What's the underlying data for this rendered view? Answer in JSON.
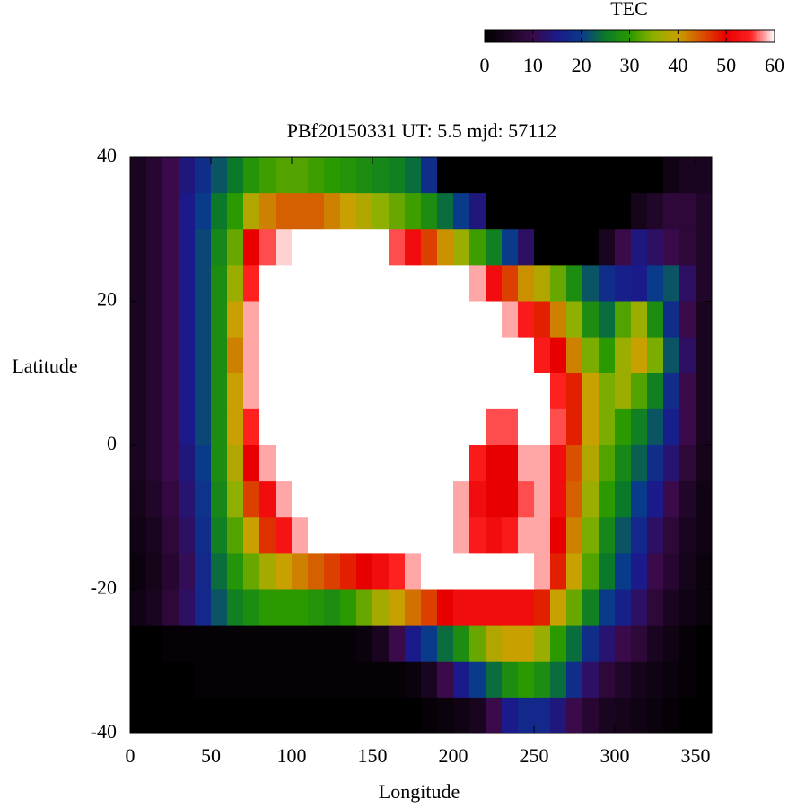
{
  "chart_data": {
    "type": "heatmap",
    "title": "PBf20150331  UT: 5.5  mjd: 57112",
    "x_label": "Longitude",
    "y_label": "Latitude",
    "xlim": [
      0,
      360
    ],
    "ylim": [
      -40,
      40
    ],
    "xticks": [
      0,
      50,
      100,
      150,
      200,
      250,
      300,
      350
    ],
    "yticks": [
      -40,
      -20,
      0,
      20,
      40
    ],
    "colorbar_title": "TEC",
    "zlim": [
      0,
      60
    ],
    "colorbar_ticks": [
      0,
      10,
      20,
      30,
      40,
      50,
      60
    ],
    "colormap": [
      "#000000",
      "#1a0520",
      "#3a0a4a",
      "#1a1a8a",
      "#0a3a8a",
      "#0a7a2a",
      "#2a9a00",
      "#8fb000",
      "#c8a000",
      "#d85000",
      "#e80000",
      "#ff2020",
      "#ffffff"
    ],
    "z": [
      [
        5,
        7,
        10,
        14,
        18,
        22,
        25,
        29,
        31,
        32,
        32,
        31,
        30,
        29,
        28,
        27,
        26,
        24,
        18,
        0,
        0,
        0,
        0,
        0,
        0,
        0,
        0,
        0,
        0,
        0,
        0,
        0,
        0,
        3,
        5,
        5
      ],
      [
        5,
        7,
        10,
        15,
        20,
        25,
        30,
        38,
        42,
        44,
        44,
        44,
        42,
        40,
        38,
        35,
        33,
        31,
        28,
        24,
        20,
        14,
        0,
        0,
        0,
        0,
        0,
        0,
        0,
        0,
        0,
        4,
        6,
        8,
        8,
        6
      ],
      [
        5,
        7,
        10,
        15,
        21,
        27,
        33,
        50,
        56,
        59,
        60,
        60,
        60,
        60,
        60,
        60,
        56,
        52,
        46,
        41,
        36,
        31,
        26,
        20,
        12,
        0,
        0,
        0,
        0,
        5,
        10,
        14,
        12,
        10,
        8,
        6
      ],
      [
        5,
        7,
        10,
        15,
        21,
        28,
        36,
        55,
        60,
        60,
        60,
        60,
        60,
        60,
        60,
        60,
        60,
        60,
        60,
        60,
        60,
        58,
        52,
        46,
        41,
        38,
        33,
        28,
        22,
        18,
        16,
        15,
        20,
        22,
        12,
        6
      ],
      [
        5,
        7,
        10,
        15,
        21,
        28,
        40,
        58,
        60,
        60,
        60,
        60,
        60,
        60,
        60,
        60,
        60,
        60,
        60,
        60,
        60,
        60,
        60,
        58,
        54,
        48,
        42,
        35,
        28,
        24,
        32,
        36,
        28,
        18,
        10,
        5
      ],
      [
        5,
        7,
        10,
        15,
        21,
        28,
        42,
        58,
        60,
        60,
        60,
        60,
        60,
        60,
        60,
        60,
        60,
        60,
        60,
        60,
        60,
        60,
        60,
        60,
        60,
        54,
        50,
        42,
        34,
        30,
        36,
        40,
        34,
        22,
        12,
        5
      ],
      [
        5,
        7,
        10,
        15,
        21,
        28,
        40,
        58,
        60,
        60,
        60,
        60,
        60,
        60,
        60,
        60,
        60,
        60,
        60,
        60,
        60,
        60,
        60,
        60,
        60,
        60,
        55,
        48,
        40,
        34,
        36,
        32,
        26,
        18,
        10,
        5
      ],
      [
        5,
        7,
        10,
        15,
        21,
        28,
        40,
        55,
        60,
        60,
        60,
        60,
        60,
        60,
        60,
        60,
        60,
        60,
        60,
        60,
        60,
        60,
        56,
        56,
        60,
        60,
        56,
        48,
        40,
        34,
        30,
        26,
        22,
        16,
        10,
        5
      ],
      [
        5,
        7,
        10,
        14,
        20,
        28,
        38,
        50,
        58,
        60,
        60,
        60,
        60,
        60,
        60,
        60,
        60,
        60,
        60,
        60,
        60,
        54,
        50,
        50,
        58,
        58,
        52,
        45,
        38,
        32,
        27,
        23,
        18,
        13,
        8,
        4
      ],
      [
        4,
        6,
        9,
        13,
        19,
        27,
        35,
        46,
        52,
        58,
        60,
        60,
        60,
        60,
        60,
        60,
        60,
        60,
        60,
        60,
        58,
        52,
        50,
        50,
        56,
        58,
        52,
        44,
        36,
        30,
        25,
        20,
        15,
        10,
        6,
        3
      ],
      [
        3,
        5,
        8,
        12,
        18,
        26,
        32,
        40,
        47,
        53,
        58,
        60,
        60,
        60,
        60,
        60,
        60,
        60,
        60,
        60,
        58,
        54,
        52,
        54,
        58,
        58,
        50,
        42,
        34,
        27,
        22,
        17,
        12,
        8,
        5,
        3
      ],
      [
        2,
        4,
        7,
        11,
        17,
        24,
        29,
        33,
        37,
        40,
        42,
        44,
        46,
        48,
        50,
        52,
        55,
        58,
        60,
        60,
        60,
        60,
        60,
        60,
        60,
        58,
        48,
        40,
        32,
        25,
        20,
        15,
        10,
        7,
        4,
        2
      ],
      [
        3,
        5,
        8,
        12,
        17,
        22,
        26,
        28,
        30,
        30,
        30,
        29,
        28,
        30,
        33,
        37,
        40,
        43,
        46,
        50,
        52,
        52,
        52,
        52,
        52,
        48,
        40,
        33,
        26,
        20,
        16,
        12,
        8,
        5,
        3,
        2
      ],
      [
        0,
        0,
        1,
        1,
        1,
        1,
        1,
        1,
        1,
        1,
        1,
        1,
        1,
        1,
        2,
        5,
        10,
        15,
        20,
        24,
        28,
        33,
        38,
        40,
        40,
        36,
        30,
        24,
        18,
        13,
        10,
        8,
        5,
        3,
        1,
        0
      ],
      [
        0,
        0,
        0,
        0,
        1,
        1,
        1,
        1,
        1,
        1,
        1,
        1,
        1,
        1,
        1,
        1,
        1,
        2,
        5,
        10,
        15,
        20,
        24,
        28,
        30,
        28,
        24,
        18,
        12,
        8,
        6,
        4,
        3,
        2,
        1,
        0
      ],
      [
        0,
        0,
        0,
        0,
        0,
        0,
        0,
        0,
        0,
        0,
        0,
        0,
        0,
        0,
        0,
        0,
        0,
        0,
        1,
        2,
        3,
        5,
        10,
        15,
        17,
        17,
        14,
        10,
        7,
        5,
        4,
        3,
        2,
        1,
        0,
        0
      ]
    ]
  }
}
